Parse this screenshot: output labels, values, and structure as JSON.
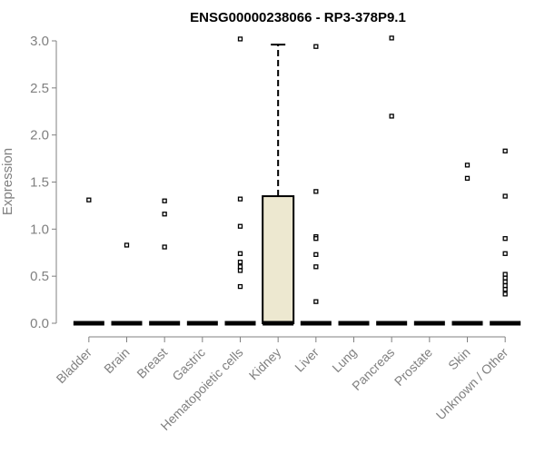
{
  "chart_data": {
    "type": "boxplot",
    "title": "ENSG00000238066 - RP3-378P9.1",
    "xlabel": "",
    "ylabel": "Expression",
    "ylim": [
      0,
      3.0
    ],
    "yticks": [
      "0.0",
      "0.5",
      "1.0",
      "1.5",
      "2.0",
      "2.5",
      "3.0"
    ],
    "categories": [
      "Bladder",
      "Brain",
      "Breast",
      "Gastric",
      "Hematopoietic cells",
      "Kidney",
      "Liver",
      "Lung",
      "Pancreas",
      "Prostate",
      "Skin",
      "Unknown / Other"
    ],
    "boxes": [
      {
        "name": "Bladder",
        "q1": 0,
        "median": 0,
        "q3": 0,
        "whisker_low": 0,
        "whisker_high": 0,
        "outliers": [
          1.31
        ]
      },
      {
        "name": "Brain",
        "q1": 0,
        "median": 0,
        "q3": 0,
        "whisker_low": 0,
        "whisker_high": 0,
        "outliers": [
          0.83
        ]
      },
      {
        "name": "Breast",
        "q1": 0,
        "median": 0,
        "q3": 0,
        "whisker_low": 0,
        "whisker_high": 0,
        "outliers": [
          1.3,
          1.16,
          0.81
        ]
      },
      {
        "name": "Gastric",
        "q1": 0,
        "median": 0,
        "q3": 0,
        "whisker_low": 0,
        "whisker_high": 0,
        "outliers": []
      },
      {
        "name": "Hematopoietic cells",
        "q1": 0,
        "median": 0,
        "q3": 0,
        "whisker_low": 0,
        "whisker_high": 0,
        "outliers": [
          3.02,
          1.32,
          1.03,
          0.74,
          0.65,
          0.6,
          0.56,
          0.39
        ]
      },
      {
        "name": "Kidney",
        "q1": 0,
        "median": 0,
        "q3": 1.35,
        "whisker_low": 0,
        "whisker_high": 2.96,
        "outliers": []
      },
      {
        "name": "Liver",
        "q1": 0,
        "median": 0,
        "q3": 0,
        "whisker_low": 0,
        "whisker_high": 0,
        "outliers": [
          2.94,
          1.4,
          0.92,
          0.9,
          0.73,
          0.6,
          0.23
        ]
      },
      {
        "name": "Lung",
        "q1": 0,
        "median": 0,
        "q3": 0,
        "whisker_low": 0,
        "whisker_high": 0,
        "outliers": []
      },
      {
        "name": "Pancreas",
        "q1": 0,
        "median": 0,
        "q3": 0,
        "whisker_low": 0,
        "whisker_high": 0,
        "outliers": [
          3.03,
          2.2
        ]
      },
      {
        "name": "Prostate",
        "q1": 0,
        "median": 0,
        "q3": 0,
        "whisker_low": 0,
        "whisker_high": 0,
        "outliers": []
      },
      {
        "name": "Skin",
        "q1": 0,
        "median": 0,
        "q3": 0,
        "whisker_low": 0,
        "whisker_high": 0,
        "outliers": [
          1.68,
          1.54
        ]
      },
      {
        "name": "Unknown / Other",
        "q1": 0,
        "median": 0,
        "q3": 0,
        "whisker_low": 0,
        "whisker_high": 0,
        "outliers": [
          1.83,
          1.35,
          0.9,
          0.74,
          0.52,
          0.48,
          0.44,
          0.4,
          0.36,
          0.31
        ]
      }
    ],
    "box_fill": "#ede8d0",
    "stroke_color": "#000000",
    "axis_color": "#808080"
  }
}
